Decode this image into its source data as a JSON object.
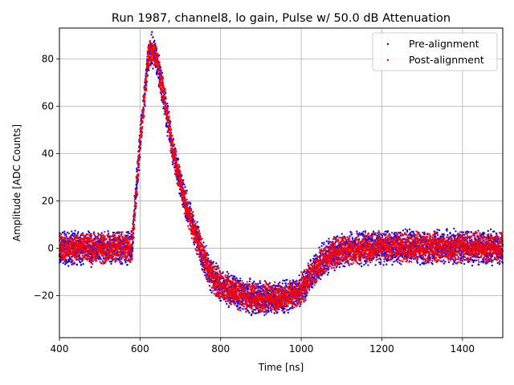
{
  "chart_data": {
    "type": "scatter",
    "title": "Run 1987, channel8, lo gain, Pulse w/ 50.0 dB Attenuation",
    "xlabel": "Time [ns]",
    "ylabel": "Amplitude [ADC Counts]",
    "xlim": [
      400,
      1500
    ],
    "ylim": [
      -37.8,
      93.0
    ],
    "xticks": [
      400,
      600,
      800,
      1000,
      1200,
      1400
    ],
    "yticks": [
      -20,
      0,
      20,
      40,
      60,
      80
    ],
    "xtick_labels": [
      "400",
      "600",
      "800",
      "1000",
      "1200",
      "1400"
    ],
    "ytick_labels": [
      "−20",
      "0",
      "20",
      "40",
      "60",
      "80"
    ],
    "grid": true,
    "legend_position": "upper-right",
    "series": [
      {
        "name": "Pre-alignment",
        "color": "#0000ff",
        "marker": "dot",
        "x": [
          400,
          500,
          580,
          600,
          620,
          630,
          640,
          660,
          680,
          700,
          720,
          740,
          760,
          780,
          800,
          850,
          900,
          950,
          990,
          1010,
          1030,
          1050,
          1070,
          1100,
          1150,
          1200,
          1300,
          1400,
          1500
        ],
        "y": [
          0,
          0,
          0.5,
          45,
          80,
          84,
          81,
          63,
          43,
          27,
          15,
          5,
          -5,
          -12,
          -16,
          -20,
          -21,
          -21,
          -19,
          -15,
          -10,
          -6,
          -3,
          -1,
          0,
          0.5,
          0.5,
          0.5,
          0.5
        ],
        "spread": 8
      },
      {
        "name": "Post-alignment",
        "color": "#ff0000",
        "marker": "dot",
        "x": [
          400,
          500,
          580,
          600,
          620,
          630,
          640,
          660,
          680,
          700,
          720,
          740,
          760,
          780,
          800,
          850,
          900,
          950,
          990,
          1010,
          1030,
          1050,
          1070,
          1100,
          1150,
          1200,
          1300,
          1400,
          1500
        ],
        "y": [
          0,
          0,
          0.5,
          45,
          80,
          84,
          81,
          63,
          43,
          27,
          15,
          5,
          -5,
          -12,
          -16,
          -20,
          -21,
          -21,
          -19,
          -15,
          -10,
          -6,
          -3,
          -1,
          0,
          0.5,
          0.5,
          0.5,
          0.5
        ],
        "spread": 7
      }
    ]
  }
}
